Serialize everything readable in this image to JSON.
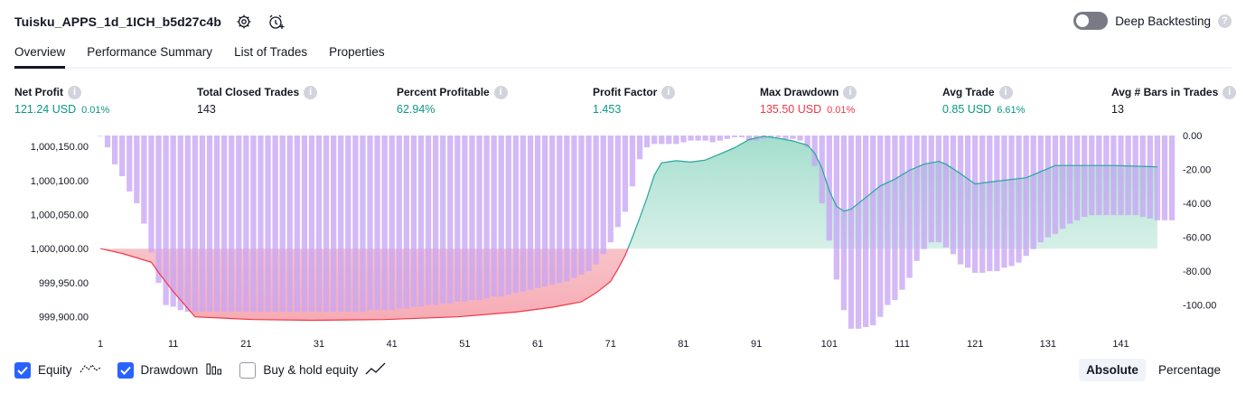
{
  "header": {
    "title": "Tuisku_APPS_1d_1ICH_b5d27c4b",
    "settings_icon": "gear-icon",
    "alert_icon": "add-alert-clock-icon"
  },
  "deep_backtesting": {
    "label": "Deep Backtesting",
    "enabled": false,
    "help_icon": "question-icon"
  },
  "tabs": [
    {
      "label": "Overview",
      "active": true
    },
    {
      "label": "Performance Summary",
      "active": false
    },
    {
      "label": "List of Trades",
      "active": false
    },
    {
      "label": "Properties",
      "active": false
    }
  ],
  "metrics": [
    {
      "label": "Net Profit",
      "value": "121.24 USD",
      "pct": "0.01%",
      "tone": "pos"
    },
    {
      "label": "Total Closed Trades",
      "value": "143",
      "pct": "",
      "tone": "neutral"
    },
    {
      "label": "Percent Profitable",
      "value": "62.94%",
      "pct": "",
      "tone": "pos"
    },
    {
      "label": "Profit Factor",
      "value": "1.453",
      "pct": "",
      "tone": "pos"
    },
    {
      "label": "Max Drawdown",
      "value": "135.50 USD",
      "pct": "0.01%",
      "tone": "neg"
    },
    {
      "label": "Avg Trade",
      "value": "0.85 USD",
      "pct": "6.61%",
      "tone": "pos"
    },
    {
      "label": "Avg # Bars in Trades",
      "value": "13",
      "pct": "",
      "tone": "neutral"
    }
  ],
  "chart_data": {
    "type": "line",
    "colors": {
      "equity_line_up": "#26a69a",
      "equity_line_down": "#f23645",
      "equity_fill_up": "#c8ece3",
      "equity_fill_down": "#f7b4bd",
      "drawdown_bar": "#c8a5f5"
    },
    "x_ticks": [
      "1",
      "11",
      "21",
      "31",
      "41",
      "51",
      "61",
      "71",
      "81",
      "91",
      "101",
      "111",
      "121",
      "131",
      "141"
    ],
    "y_left_ticks": [
      "1,000,150.00",
      "1,000,100.00",
      "1,000,050.00",
      "1,000,000.00",
      "999,950.00",
      "999,900.00"
    ],
    "y_left_range": [
      999885,
      1000166
    ],
    "y_right_ticks": [
      "0.00",
      "-20.00",
      "-40.00",
      "-60.00",
      "-80.00",
      "-100.00"
    ],
    "y_right_range": [
      -113,
      0
    ],
    "baseline": 1000000,
    "series": [
      {
        "name": "Equity",
        "points": [
          [
            1,
            1000000
          ],
          [
            4,
            999993
          ],
          [
            8,
            999980
          ],
          [
            9,
            999965
          ],
          [
            11,
            999937
          ],
          [
            14,
            999900
          ],
          [
            22,
            999896
          ],
          [
            30,
            999895
          ],
          [
            40,
            999896
          ],
          [
            50,
            999900
          ],
          [
            58,
            999907
          ],
          [
            63,
            999914
          ],
          [
            67,
            999922
          ],
          [
            69,
            999935
          ],
          [
            71,
            999952
          ],
          [
            72,
            999970
          ],
          [
            73,
            999990
          ],
          [
            74,
            1000017
          ],
          [
            75,
            1000045
          ],
          [
            76,
            1000075
          ],
          [
            77,
            1000108
          ],
          [
            78,
            1000126
          ],
          [
            80,
            1000129
          ],
          [
            82,
            1000127
          ],
          [
            84,
            1000130
          ],
          [
            86,
            1000139
          ],
          [
            88,
            1000148
          ],
          [
            90,
            1000160
          ],
          [
            92,
            1000165
          ],
          [
            94,
            1000162
          ],
          [
            96,
            1000158
          ],
          [
            98,
            1000152
          ],
          [
            99,
            1000140
          ],
          [
            100,
            1000118
          ],
          [
            101,
            1000085
          ],
          [
            102,
            1000062
          ],
          [
            103,
            1000055
          ],
          [
            104,
            1000058
          ],
          [
            106,
            1000075
          ],
          [
            108,
            1000092
          ],
          [
            110,
            1000102
          ],
          [
            112,
            1000115
          ],
          [
            114,
            1000124
          ],
          [
            116,
            1000128
          ],
          [
            117,
            1000124
          ],
          [
            119,
            1000110
          ],
          [
            121,
            1000095
          ],
          [
            124,
            1000099
          ],
          [
            128,
            1000104
          ],
          [
            132,
            1000122
          ],
          [
            140,
            1000122
          ],
          [
            146,
            1000120
          ]
        ]
      },
      {
        "name": "Drawdown",
        "values": [
          0,
          -7,
          -17,
          -24,
          -33,
          -40,
          -52,
          -69,
          -87,
          -100,
          -101,
          -103,
          -104,
          -104,
          -104,
          -104,
          -104,
          -104,
          -104,
          -104,
          -104,
          -104,
          -104,
          -104,
          -104,
          -104,
          -104,
          -104,
          -104,
          -104,
          -104,
          -104,
          -104,
          -104,
          -104,
          -104,
          -104,
          -103,
          -103,
          -103,
          -103,
          -102,
          -102,
          -101,
          -101,
          -100,
          -100,
          -99,
          -99,
          -98,
          -98,
          -97,
          -97,
          -96,
          -95,
          -95,
          -94,
          -93,
          -92,
          -91,
          -90,
          -89,
          -88,
          -87,
          -86,
          -84,
          -82,
          -80,
          -76,
          -70,
          -63,
          -54,
          -45,
          -30,
          -14,
          -7,
          -5,
          -5,
          -5,
          -5,
          -4,
          -3,
          -3,
          -3,
          -4,
          -3,
          -2,
          -1,
          -1,
          -3,
          -3,
          -2,
          -1,
          -1,
          -2,
          -2,
          -3,
          -7,
          -18,
          -40,
          -62,
          -85,
          -103,
          -114,
          -114,
          -113,
          -112,
          -107,
          -100,
          -97,
          -91,
          -84,
          -74,
          -67,
          -63,
          -63,
          -66,
          -70,
          -76,
          -78,
          -81,
          -81,
          -80,
          -80,
          -78,
          -77,
          -75,
          -71,
          -67,
          -63,
          -60,
          -58,
          -55,
          -52,
          -50,
          -48,
          -47,
          -47,
          -47,
          -47,
          -47,
          -47,
          -47,
          -48,
          -49,
          -50,
          -50,
          -50
        ]
      }
    ]
  },
  "legend": [
    {
      "label": "Equity",
      "checked": true,
      "icon": "equity-line-icon"
    },
    {
      "label": "Drawdown",
      "checked": true,
      "icon": "drawdown-bars-icon"
    },
    {
      "label": "Buy & hold equity",
      "checked": false,
      "icon": "buy-hold-line-icon"
    }
  ],
  "view_modes": [
    {
      "label": "Absolute",
      "active": true
    },
    {
      "label": "Percentage",
      "active": false
    }
  ]
}
